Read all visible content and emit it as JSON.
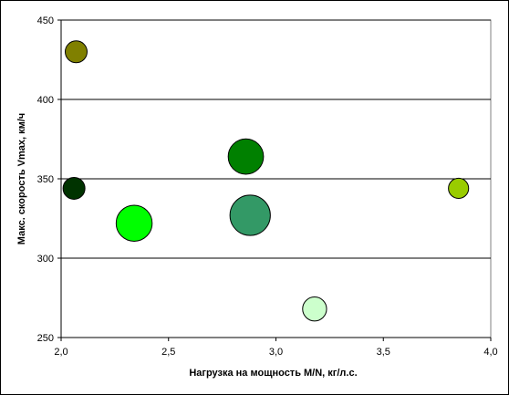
{
  "chart_data": {
    "type": "scatter",
    "variant": "bubble",
    "title": "",
    "xlabel": "Нагрузка на мощность M/N, кг/л.с.",
    "ylabel": "Макс. скорость Vmax, км/ч",
    "xlim": [
      2.0,
      4.0
    ],
    "ylim": [
      250,
      450
    ],
    "xticks": [
      2.0,
      2.5,
      3.0,
      3.5,
      4.0
    ],
    "yticks": [
      250,
      300,
      350,
      400,
      450
    ],
    "xtick_labels": [
      "2,0",
      "2,5",
      "3,0",
      "3,5",
      "4,0"
    ],
    "ytick_labels": [
      "250",
      "300",
      "350",
      "400",
      "450"
    ],
    "grid": "horizontal",
    "legend": "none",
    "plot_background": "#ffffff",
    "gridline_color": "#000000",
    "points": [
      {
        "x": 2.07,
        "y": 430,
        "size": 1.0,
        "color": "#808000"
      },
      {
        "x": 2.06,
        "y": 344,
        "size": 1.0,
        "color": "#003300"
      },
      {
        "x": 2.34,
        "y": 322,
        "size": 2.7,
        "color": "#00ff00"
      },
      {
        "x": 2.86,
        "y": 364,
        "size": 2.6,
        "color": "#008000"
      },
      {
        "x": 2.88,
        "y": 327,
        "size": 3.4,
        "color": "#339966"
      },
      {
        "x": 3.18,
        "y": 268,
        "size": 1.2,
        "color": "#ccffcc"
      },
      {
        "x": 3.85,
        "y": 344,
        "size": 0.85,
        "color": "#99cc00"
      }
    ]
  }
}
